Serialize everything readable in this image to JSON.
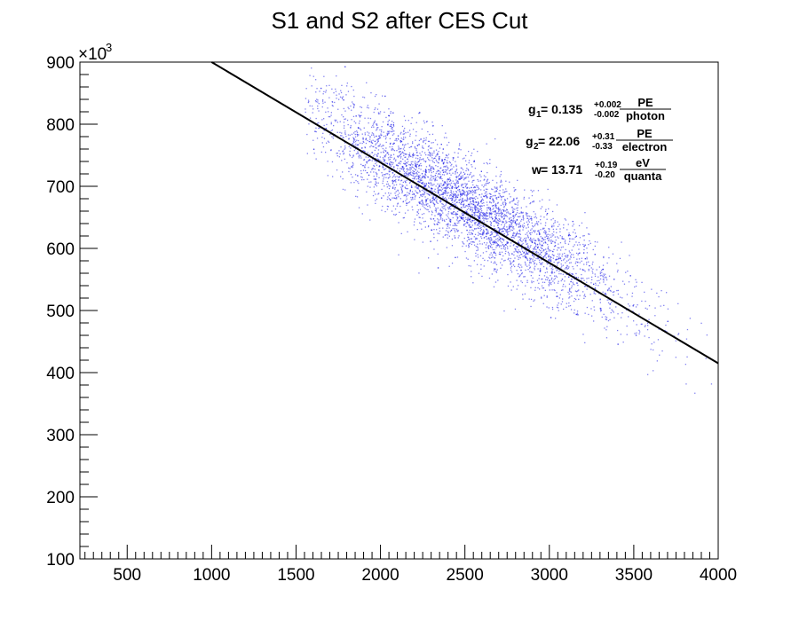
{
  "chart_data": {
    "type": "scatter",
    "title": "S1 and S2 after CES Cut",
    "xlabel": "",
    "ylabel": "",
    "xlim": [
      220,
      4000
    ],
    "ylim": [
      100,
      900
    ],
    "y_exponent_label": "×10",
    "y_exponent_power": "3",
    "x_ticks": [
      500,
      1000,
      1500,
      2000,
      2500,
      3000,
      3500,
      4000
    ],
    "y_ticks": [
      100,
      200,
      300,
      400,
      500,
      600,
      700,
      800,
      900
    ],
    "marker_color": "#1a1ae6",
    "line_color": "#000000",
    "scatter_density_band": {
      "x_range": [
        1550,
        4000
      ],
      "center_line": {
        "x": [
          1000,
          4000
        ],
        "y": [
          900,
          415
        ]
      },
      "y_spread": 38,
      "peak_x": 2500
    },
    "fit_line": {
      "x": [
        1000,
        4000
      ],
      "y": [
        900,
        415
      ]
    },
    "grid": false,
    "legend": "none"
  },
  "annotations": {
    "g1": {
      "sym": "g",
      "sub": "1",
      "eq": " = 0.135",
      "sup": "+0.002",
      "low": "-0.002",
      "num": "PE",
      "den": "photon"
    },
    "g2": {
      "sym": "g",
      "sub": "2",
      "eq": " = 22.06",
      "sup": "+0.31",
      "low": "-0.33",
      "num": "PE",
      "den": "electron"
    },
    "w": {
      "sym": "w",
      "sub": "",
      "eq": " = 13.71",
      "sup": "+0.19",
      "low": "-0.20",
      "num": "eV",
      "den": "quanta"
    }
  }
}
